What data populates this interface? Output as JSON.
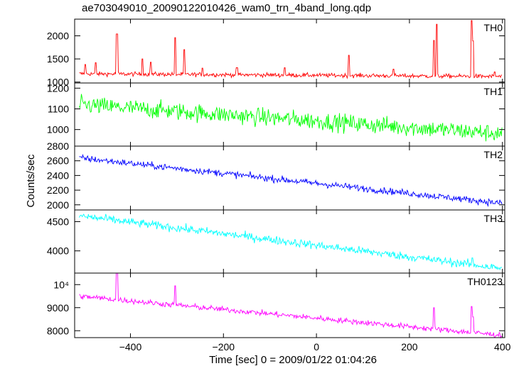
{
  "title": "ae703049010_20090122010426_wam0_trn_4band_long.qdp",
  "ylabel": "Counts/sec",
  "xlabel": "Time [sec] 0 = 2009/01/22 01:04:26",
  "colors": {
    "axis": "#000000",
    "TH0": "#ff0000",
    "TH1": "#00ff00",
    "TH2": "#0000ff",
    "TH3": "#00ffff",
    "TH0123": "#ff00ff"
  },
  "chart_data": {
    "type": "line",
    "x": {
      "range": [
        -520,
        405
      ],
      "ticks": [
        -400,
        -200,
        0,
        200,
        400
      ],
      "tick_labels": [
        "−400",
        "−200",
        "0",
        "200",
        "400"
      ],
      "label": "Time [sec] 0 = 2009/01/22 01:04:26"
    },
    "ylabel": "Counts/sec",
    "grid": false,
    "panels": [
      {
        "name": "TH0",
        "color": "#ff0000",
        "ylim": [
          980,
          2360
        ],
        "ticks": [
          1000,
          1500,
          2000
        ],
        "tick_labels": [
          "1000",
          "1500",
          "2000"
        ],
        "trend": [
          [
            -510,
            1180
          ],
          [
            400,
            1120
          ]
        ],
        "noise": 45,
        "spikes": [
          [
            -497,
            1380
          ],
          [
            -475,
            1420
          ],
          [
            -429,
            2040
          ],
          [
            -374,
            1500
          ],
          [
            -356,
            1430
          ],
          [
            -304,
            1960
          ],
          [
            -284,
            1700
          ],
          [
            -245,
            1300
          ],
          [
            -171,
            1310
          ],
          [
            -68,
            1310
          ],
          [
            70,
            1580
          ],
          [
            166,
            1280
          ],
          [
            253,
            1900
          ],
          [
            259,
            2250
          ],
          [
            334,
            2330
          ],
          [
            337,
            1890
          ],
          [
            383,
            1220
          ]
        ]
      },
      {
        "name": "TH1",
        "color": "#00ff00",
        "ylim": [
          920,
          1225
        ],
        "ticks": [
          1000,
          1100,
          1200
        ],
        "tick_labels": [
          "1000",
          "1100",
          "1200"
        ],
        "trend": [
          [
            -510,
            1120
          ],
          [
            400,
            980
          ]
        ],
        "noise": 42,
        "spikes": []
      },
      {
        "name": "TH2",
        "color": "#0000ff",
        "ylim": [
          1930,
          2800
        ],
        "ticks": [
          2000,
          2200,
          2400,
          2600,
          2800
        ],
        "tick_labels": [
          "2000",
          "2200",
          "2400",
          "2600",
          "2800"
        ],
        "trend": [
          [
            -510,
            2640
          ],
          [
            400,
            2020
          ]
        ],
        "noise": 45,
        "spikes": []
      },
      {
        "name": "TH3",
        "color": "#00ffff",
        "ylim": [
          3620,
          4700
        ],
        "ticks": [
          4000,
          4500
        ],
        "tick_labels": [
          "4000",
          "4500"
        ],
        "trend": [
          [
            -510,
            4600
          ],
          [
            400,
            3700
          ]
        ],
        "noise": 70,
        "spikes": [
          [
            335,
            3880
          ]
        ]
      },
      {
        "name": "TH0123",
        "color": "#ff00ff",
        "ylim": [
          7700,
          10500
        ],
        "ticks": [
          8000,
          9000,
          10000
        ],
        "tick_labels": [
          "8000",
          "9000",
          "10⁴"
        ],
        "trend": [
          [
            -510,
            9500
          ],
          [
            400,
            7800
          ]
        ],
        "noise": 120,
        "spikes": [
          [
            -429,
            10500
          ],
          [
            -304,
            9950
          ],
          [
            70,
            8400
          ],
          [
            253,
            9000
          ],
          [
            334,
            9050
          ],
          [
            337,
            8600
          ]
        ]
      }
    ]
  }
}
